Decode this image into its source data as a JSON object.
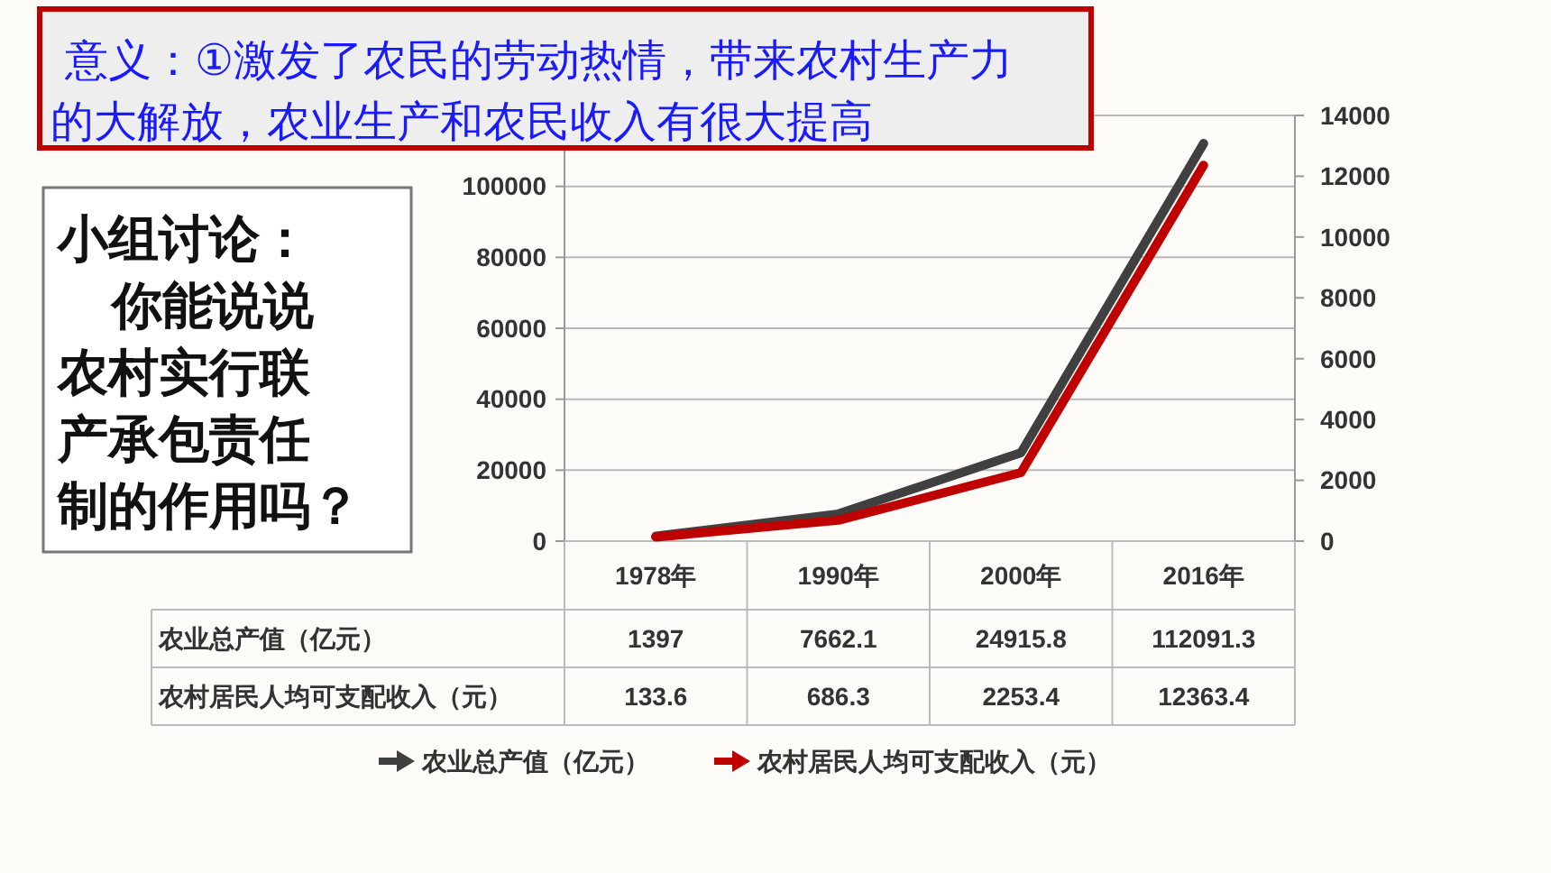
{
  "chart_data": {
    "type": "line",
    "categories": [
      "1978年",
      "1990年",
      "2000年",
      "2016年"
    ],
    "series": [
      {
        "name": "农业总产值（亿元）",
        "color": "#404040",
        "values": [
          1397,
          7662.1,
          24915.8,
          112091.3
        ]
      },
      {
        "name": "农村居民人均可支配收入（元）",
        "color": "#c00000",
        "values": [
          133.6,
          686.3,
          2253.4,
          12363.4
        ],
        "axis": "y2"
      }
    ],
    "ylim": [
      0,
      120000
    ],
    "yticks": [
      0,
      20000,
      40000,
      60000,
      80000,
      100000,
      {
        "value": 120000,
        "label": null
      }
    ],
    "y2lim": [
      0,
      14000
    ],
    "y2ticks": [
      0,
      2000,
      4000,
      6000,
      8000,
      10000,
      12000,
      14000
    ],
    "grid": "y",
    "legend": "bottom",
    "data_labels": true,
    "marker": "none",
    "line_style": "solid",
    "annotations": [
      "意义：①激发了农民的劳动热情，带来农村生产力的大解放，农业生产和农民收入有很大提高",
      "小组讨论：你能说说农村实行联产承包责任制的作用吗？"
    ]
  }
}
